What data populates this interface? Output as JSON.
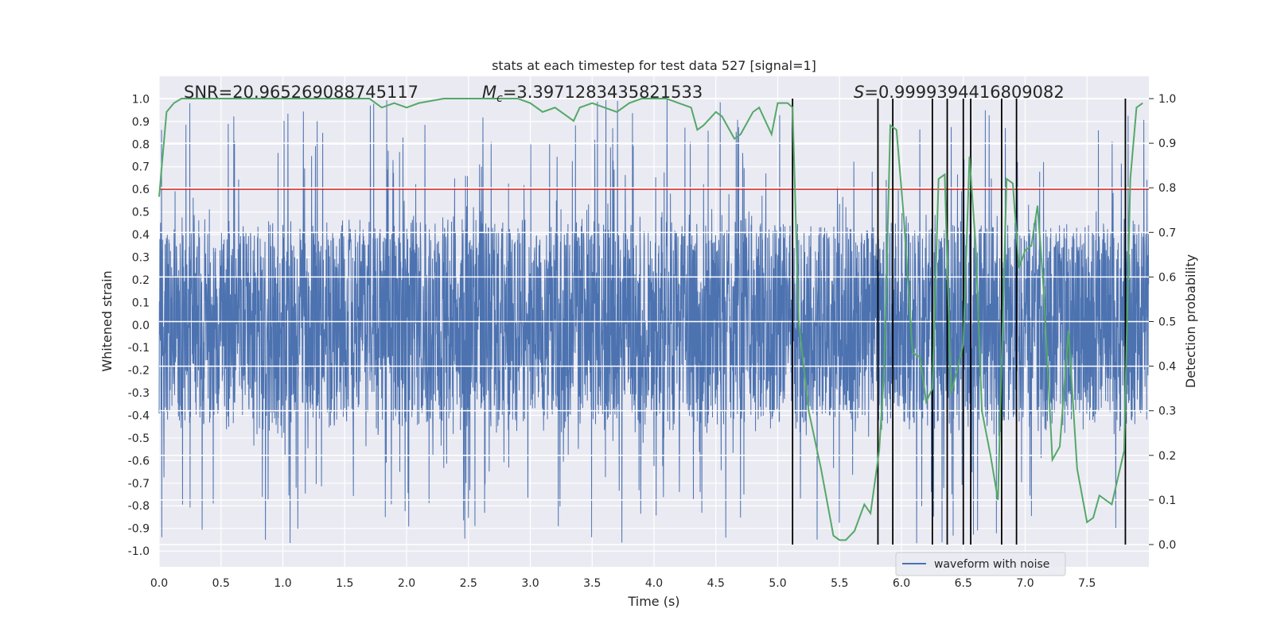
{
  "chart_data": {
    "type": "line",
    "title": "stats at each timestep for test data 527 [signal=1]",
    "xlabel": "Time (s)",
    "ylabel_left": "Whitened strain",
    "ylabel_right": "Detection probability",
    "xlim": [
      0.0,
      8.0
    ],
    "ylim_left": [
      -1.07,
      1.1
    ],
    "ylim_right": [
      -0.05,
      1.05
    ],
    "x_ticks": [
      "0.0",
      "0.5",
      "1.0",
      "1.5",
      "2.0",
      "2.5",
      "3.0",
      "3.5",
      "4.0",
      "4.5",
      "5.0",
      "5.5",
      "6.0",
      "6.5",
      "7.0",
      "7.5"
    ],
    "y_ticks_left": [
      "1.0",
      "0.9",
      "0.8",
      "0.7",
      "0.6",
      "0.5",
      "0.4",
      "0.3",
      "0.2",
      "0.1",
      "0.0",
      "-0.1",
      "-0.2",
      "-0.3",
      "-0.4",
      "-0.5",
      "-0.6",
      "-0.7",
      "-0.8",
      "-0.9",
      "-1.0"
    ],
    "y_ticks_right": [
      "1.0",
      "0.9",
      "0.8",
      "0.7",
      "0.6",
      "0.5",
      "0.4",
      "0.3",
      "0.2",
      "0.1",
      "0.0"
    ],
    "annotations": {
      "snr_text": "SNR=20.965269088745117",
      "mc_symbol": "M",
      "mc_subscript": "c",
      "mc_value": "=3.3971283435821533",
      "s_symbol": "S",
      "s_value": "=0.9999394416809082"
    },
    "threshold": {
      "value": 0.6,
      "color": "#d62728"
    },
    "series": [
      {
        "name": "waveform with noise",
        "axis": "left",
        "color": "#4c72b0",
        "sample_rate": 2048,
        "envelope_upper": 0.4,
        "envelope_lower": -0.4,
        "peak_max": 1.0,
        "peak_min": -0.97
      },
      {
        "name": "detection probability",
        "axis": "right",
        "color": "#55a868",
        "x": [
          0.0,
          0.06,
          0.12,
          0.18,
          0.3,
          0.5,
          0.7,
          0.9,
          1.1,
          1.3,
          1.5,
          1.7,
          1.75,
          1.8,
          1.9,
          2.0,
          2.1,
          2.3,
          2.5,
          2.7,
          2.9,
          3.0,
          3.1,
          3.2,
          3.3,
          3.35,
          3.4,
          3.5,
          3.6,
          3.7,
          3.8,
          3.9,
          4.0,
          4.1,
          4.2,
          4.3,
          4.35,
          4.4,
          4.5,
          4.55,
          4.65,
          4.7,
          4.8,
          4.85,
          4.95,
          5.0,
          5.08,
          5.12,
          5.17,
          5.25,
          5.35,
          5.45,
          5.5,
          5.55,
          5.62,
          5.7,
          5.75,
          5.82,
          5.86,
          5.91,
          5.96,
          6.02,
          6.09,
          6.15,
          6.2,
          6.25,
          6.3,
          6.35,
          6.4,
          6.45,
          6.5,
          6.55,
          6.6,
          6.65,
          6.72,
          6.78,
          6.85,
          6.9,
          6.95,
          7.0,
          7.05,
          7.1,
          7.15,
          7.22,
          7.28,
          7.35,
          7.42,
          7.5,
          7.55,
          7.6,
          7.7,
          7.8,
          7.85,
          7.9,
          7.95
        ],
        "y": [
          0.78,
          0.97,
          0.99,
          1.0,
          1.0,
          1.0,
          1.0,
          1.0,
          1.0,
          1.0,
          1.0,
          1.0,
          0.99,
          0.98,
          0.99,
          0.98,
          0.99,
          1.0,
          1.0,
          1.0,
          1.0,
          0.99,
          0.97,
          0.98,
          0.96,
          0.95,
          0.98,
          0.99,
          0.98,
          0.97,
          0.99,
          1.0,
          1.0,
          1.0,
          0.99,
          0.98,
          0.93,
          0.94,
          0.97,
          0.96,
          0.91,
          0.92,
          0.97,
          0.98,
          0.92,
          0.99,
          0.99,
          0.98,
          0.5,
          0.3,
          0.17,
          0.02,
          0.01,
          0.01,
          0.03,
          0.09,
          0.07,
          0.21,
          0.39,
          0.94,
          0.93,
          0.73,
          0.43,
          0.42,
          0.32,
          0.35,
          0.82,
          0.83,
          0.34,
          0.39,
          0.45,
          0.87,
          0.67,
          0.3,
          0.2,
          0.1,
          0.82,
          0.81,
          0.62,
          0.66,
          0.67,
          0.76,
          0.57,
          0.19,
          0.22,
          0.48,
          0.17,
          0.05,
          0.06,
          0.11,
          0.09,
          0.21,
          0.82,
          0.98,
          0.99
        ]
      }
    ],
    "vertical_markers": [
      5.12,
      5.81,
      5.93,
      6.25,
      6.37,
      6.5,
      6.56,
      6.81,
      6.93,
      7.81
    ],
    "legend": {
      "label": "waveform with noise",
      "location": "lower-right-inside"
    }
  }
}
